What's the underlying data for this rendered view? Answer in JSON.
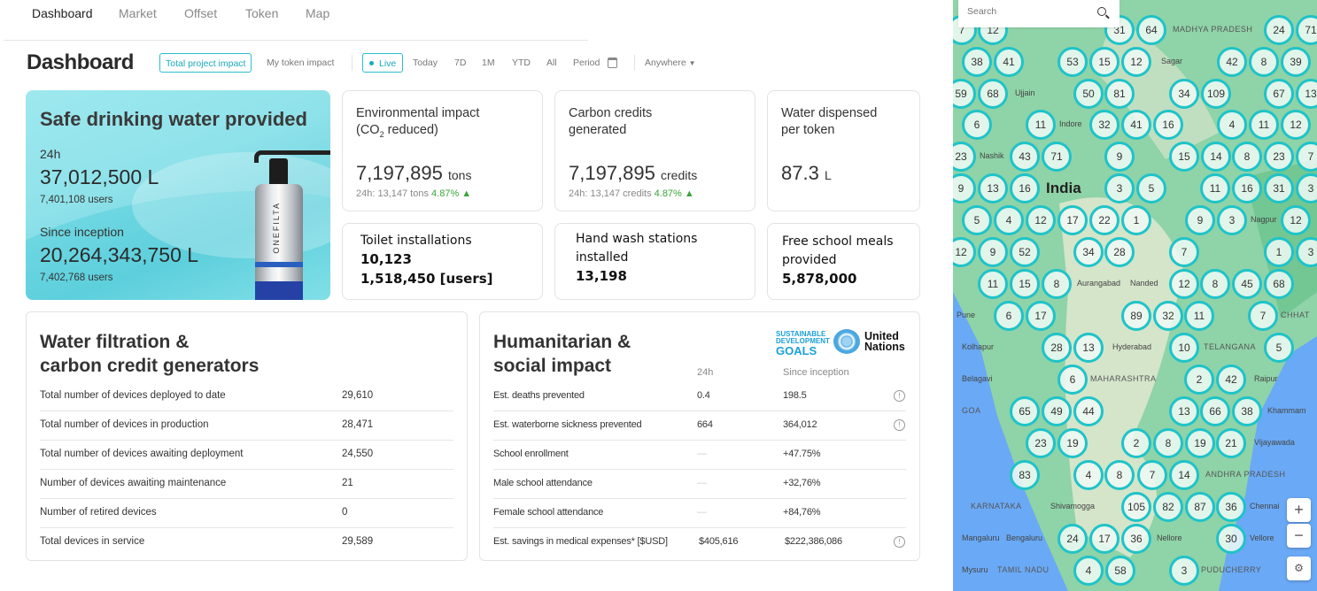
{
  "nav": {
    "tabs": [
      {
        "label": "Dashboard"
      },
      {
        "label": "Market"
      },
      {
        "label": "Offset"
      },
      {
        "label": "Token"
      },
      {
        "label": "Map"
      }
    ]
  },
  "page_title": "Dashboard",
  "filters": {
    "scope": [
      "Total project impact",
      "My token impact"
    ],
    "live": "Live",
    "periods": [
      "Today",
      "7D",
      "1M",
      "YTD",
      "All"
    ],
    "period_label": "Period",
    "location": "Anywhere"
  },
  "hero": {
    "title": "Safe drinking water provided",
    "label_24h": "24h",
    "value_24h": "37,012,500 L",
    "users_24h": "7,401,108 users",
    "label_since": "Since inception",
    "value_since": "20,264,343,750 L",
    "users_since": "7,402,768 users",
    "product_brand": "ONEFILTA"
  },
  "cards": [
    {
      "title1": "Environmental impact",
      "title2a": "(CO",
      "title2sub": "2",
      "title2b": " reduced)",
      "value": "7,197,895",
      "unit": "tons",
      "sub": "24h: 13,147 tons",
      "change": "4.87% ▲"
    },
    {
      "title1": "Carbon credits",
      "title2": "generated",
      "value": "7,197,895",
      "unit": "credits",
      "sub": "24h: 13,147 credits",
      "change": "4.87% ▲"
    },
    {
      "title1": "Water dispensed",
      "title2": "per token",
      "value": "87.3",
      "unit": "L"
    }
  ],
  "bottom_cards": [
    {
      "title": "Toilet installations",
      "value": "10,123",
      "value2": "1,518,450 [users]"
    },
    {
      "title": "Hand wash stations installed",
      "value": "13,198"
    },
    {
      "title": "Free school meals provided",
      "value": "5,878,000"
    }
  ],
  "generators": {
    "title1": "Water filtration &",
    "title2": "carbon credit generators",
    "rows": [
      {
        "label": "Total number of devices deployed to date",
        "value": "29,610"
      },
      {
        "label": "Total number of devices in production",
        "value": "28,471"
      },
      {
        "label": "Total number of devices awaiting deployment",
        "value": "24,550"
      },
      {
        "label": "Number of devices awaiting maintenance",
        "value": "21"
      },
      {
        "label": "Number of retired devices",
        "value": "0"
      },
      {
        "label": "Total devices in service",
        "value": "29,589"
      }
    ]
  },
  "humanitarian": {
    "title1": "Humanitarian &",
    "title2": "social impact",
    "col_24h": "24h",
    "col_since": "Since inception",
    "sdg_logo": [
      "SUSTAINABLE",
      "DEVELOPMENT",
      "GOALS"
    ],
    "un_logo": [
      "United",
      "Nations"
    ],
    "rows": [
      {
        "label": "Est. deaths prevented",
        "h24": "0.4",
        "since": "198.5",
        "info": true
      },
      {
        "label": "Est. waterborne sickness prevented",
        "h24": "664",
        "since": "364,012",
        "info": true
      },
      {
        "label": "School enrollment",
        "h24": "—",
        "since": "+47.75%",
        "info": false
      },
      {
        "label": "Male school attendance",
        "h24": "—",
        "since": "+32,76%",
        "info": false
      },
      {
        "label": "Female school attendance",
        "h24": "—",
        "since": "+84,76%",
        "info": false
      },
      {
        "label": "Est. savings in medical expenses* [$USD]",
        "h24": "$405,616",
        "since": "$222,386,086",
        "info": true
      }
    ]
  },
  "map": {
    "search_placeholder": "Search",
    "zoom_in": "+",
    "zoom_out": "−",
    "labels": [
      "Sagar",
      "Ujjain",
      "Indore",
      "MADHYA PRADESH",
      "India",
      "CHHAT",
      "Nagpur",
      "Raipur",
      "Nashik",
      "Aurangabad",
      "MAHARASHTRA",
      "Nanded",
      "Pune",
      "TELANGANA",
      "Hyderabad",
      "Khammam",
      "Kolhapur",
      "Vijayawada",
      "Belagavi",
      "GOA",
      "KARNATAKA",
      "ANDHRA PRADESH",
      "Nellore",
      "Shivamogga",
      "Mangaluru",
      "Bengaluru",
      "Chennai",
      "Vellore",
      "Mysuru",
      "PUDUCHERRY",
      "TAMIL NADU"
    ],
    "clusters": [
      7,
      12,
      31,
      64,
      24,
      71,
      38,
      41,
      53,
      15,
      12,
      42,
      8,
      39,
      59,
      68,
      50,
      81,
      34,
      109,
      67,
      13,
      6,
      11,
      32,
      41,
      16,
      4,
      11,
      12,
      23,
      43,
      71,
      9,
      15,
      14,
      8,
      23,
      7,
      9,
      13,
      16,
      3,
      5,
      11,
      16,
      31,
      3,
      5,
      4,
      12,
      17,
      22,
      1,
      9,
      3,
      12,
      12,
      9,
      52,
      34,
      28,
      7,
      1,
      3,
      11,
      15,
      8,
      12,
      8,
      45,
      68,
      6,
      17,
      89,
      32,
      11,
      7,
      28,
      13,
      10,
      5,
      6,
      2,
      42,
      65,
      49,
      44,
      13,
      66,
      38,
      23,
      19,
      2,
      8,
      19,
      21,
      83,
      4,
      8,
      7,
      14,
      105,
      82,
      87,
      36,
      24,
      17,
      36,
      30,
      4,
      58,
      3
    ]
  },
  "colors": {
    "accent": "#1fc3c8",
    "positive": "#3aa53a",
    "map_land": "#8fd3a8",
    "map_water": "#6aa9f5"
  }
}
